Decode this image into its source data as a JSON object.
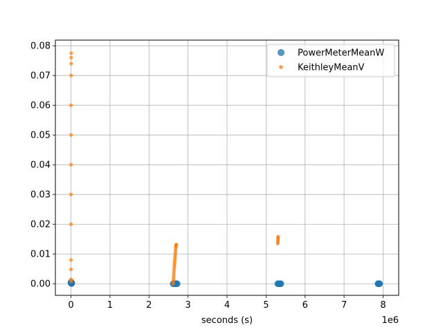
{
  "chart_data": {
    "type": "scatter",
    "title": "",
    "xlabel": "seconds (s)",
    "ylabel": "",
    "x_offset_label": "1e6",
    "xlim": [
      -400000,
      8400000
    ],
    "ylim": [
      -0.0039,
      0.0819
    ],
    "xticks": [
      0,
      1000000,
      2000000,
      3000000,
      4000000,
      5000000,
      6000000,
      7000000,
      8000000
    ],
    "xtick_labels": [
      "0",
      "1",
      "2",
      "3",
      "4",
      "5",
      "6",
      "7",
      "8"
    ],
    "yticks": [
      0.0,
      0.01,
      0.02,
      0.03,
      0.04,
      0.05,
      0.06,
      0.07,
      0.08
    ],
    "ytick_labels": [
      "0.00",
      "0.01",
      "0.02",
      "0.03",
      "0.04",
      "0.05",
      "0.06",
      "0.07",
      "0.08"
    ],
    "grid": true,
    "legend_position": "top-right",
    "series": [
      {
        "name": "PowerMeterMeanW",
        "color": "#1f77b4",
        "marker": "large-circle",
        "x": [
          0,
          2500,
          5000,
          10000,
          15000,
          20000,
          2620000,
          2640000,
          2660000,
          2680000,
          2700000,
          2720000,
          5300000,
          5320000,
          5340000,
          5360000,
          5380000,
          7870000,
          7880000,
          7890000,
          7900000,
          7910000
        ],
        "y": [
          0.0003,
          0.0005,
          0.0002,
          0.0004,
          0.0001,
          0.0002,
          0,
          0,
          0,
          0,
          0,
          0,
          0,
          0,
          0,
          0,
          0,
          0,
          0,
          0,
          0,
          0
        ]
      },
      {
        "name": "KeithleyMeanV",
        "color": "#ff7f0e",
        "marker": "small-circle",
        "x": [
          0,
          0,
          0,
          0,
          2000,
          2000,
          4000,
          4000,
          6000,
          6000,
          0,
          2000,
          2000,
          2620000,
          2624000,
          2628000,
          2632000,
          2636000,
          2640000,
          2644000,
          2648000,
          2652000,
          2656000,
          2660000,
          2664000,
          2668000,
          2672000,
          2676000,
          2680000,
          2684000,
          2688000,
          2692000,
          2696000,
          2700000,
          5300000,
          5302000,
          5304000,
          5306000,
          5308000,
          5310000
        ],
        "y": [
          0.008,
          0.02,
          0.03,
          0.04,
          0.05,
          0.06,
          0.07,
          0.074,
          0.076,
          0.0775,
          0.0048,
          0.0008,
          0.0015,
          0.0,
          0.0008,
          0.0016,
          0.0024,
          0.0032,
          0.004,
          0.0048,
          0.0055,
          0.0062,
          0.0069,
          0.0076,
          0.0083,
          0.009,
          0.0097,
          0.0104,
          0.0111,
          0.0118,
          0.0124,
          0.0128,
          0.013,
          0.0132,
          0.0135,
          0.014,
          0.0145,
          0.015,
          0.0155,
          0.0158
        ]
      }
    ]
  }
}
